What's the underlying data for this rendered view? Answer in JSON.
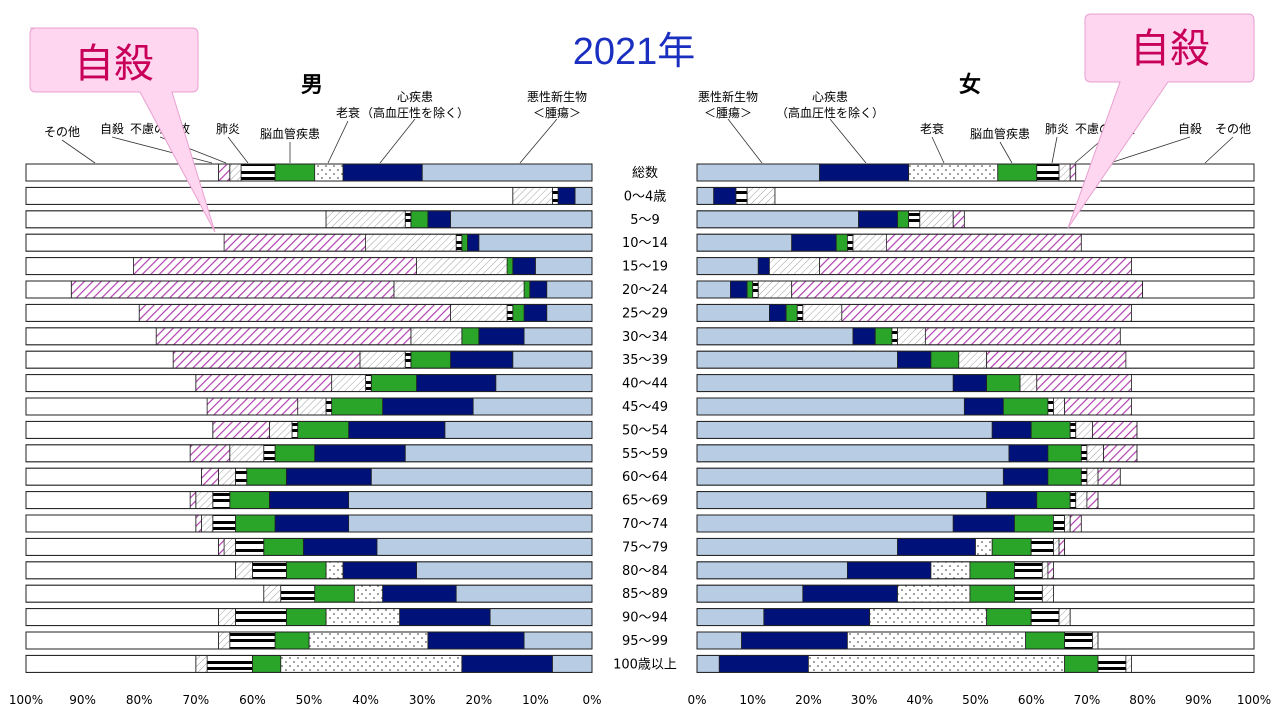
{
  "title": "2021年",
  "colors": {
    "悪性新生物＜腫瘍＞": "#b8cce4",
    "心疾患（高血圧性を除く）": "#00127a",
    "老衰": "dots",
    "脳血管疾患": "#2aa52a",
    "肺炎": "#ffffff",
    "不慮の事故": "diagonal-gray",
    "自殺": "diagonal-purple",
    "その他": "#ffffff",
    "callout_fill": "#ffd6f0",
    "title_color": "#1a2fc0",
    "callout_text_color": "#c8005a"
  },
  "callouts": {
    "male": "自殺",
    "female": "自殺"
  },
  "chart_data": [
    {
      "type": "bar",
      "orientation": "horizontal-stacked-100",
      "title": "男",
      "x_direction": "right-to-left",
      "xlim": [
        0,
        100
      ],
      "x_ticks": [
        "100%",
        "90%",
        "80%",
        "70%",
        "60%",
        "50%",
        "40%",
        "30%",
        "20%",
        "10%",
        "0%"
      ],
      "legend_labels": [
        "その他",
        "自殺",
        "不慮の事故",
        "肺炎",
        "脳血管疾患",
        "老衰",
        "心疾患\n（高血圧性を除く）",
        "悪性新生物\n＜腫瘍＞"
      ],
      "series_order": [
        "悪性新生物＜腫瘍＞",
        "心疾患（高血圧性を除く）",
        "老衰",
        "脳血管疾患",
        "肺炎",
        "不慮の事故",
        "自殺",
        "その他"
      ],
      "categories": [
        "総数",
        "0～4歳",
        "5～9",
        "10～14",
        "15～19",
        "20～24",
        "25～29",
        "30～34",
        "35～39",
        "40～44",
        "45～49",
        "50～54",
        "55～59",
        "60～64",
        "65～69",
        "70～74",
        "75～79",
        "80～84",
        "85～89",
        "90～94",
        "95～99",
        "100歳以上"
      ],
      "series": [
        {
          "name": "悪性新生物＜腫瘍＞",
          "values": [
            30,
            3,
            25,
            20,
            10,
            8,
            8,
            12,
            14,
            17,
            21,
            26,
            33,
            39,
            43,
            43,
            38,
            31,
            24,
            18,
            12,
            7
          ]
        },
        {
          "name": "心疾患（高血圧性を除く）",
          "values": [
            14,
            3,
            4,
            2,
            4,
            3,
            4,
            8,
            11,
            14,
            16,
            17,
            16,
            15,
            14,
            13,
            13,
            13,
            13,
            16,
            17,
            16
          ]
        },
        {
          "name": "老衰",
          "values": [
            5,
            0,
            0,
            0,
            0,
            0,
            0,
            0,
            0,
            0,
            0,
            0,
            0,
            0,
            0,
            0,
            0,
            3,
            5,
            13,
            21,
            32
          ]
        },
        {
          "name": "脳血管疾患",
          "values": [
            7,
            0,
            3,
            1,
            1,
            1,
            2,
            3,
            7,
            8,
            9,
            9,
            7,
            7,
            7,
            7,
            7,
            7,
            7,
            7,
            6,
            5
          ]
        },
        {
          "name": "肺炎",
          "values": [
            6,
            1,
            1,
            1,
            0,
            0,
            1,
            0,
            1,
            1,
            1,
            1,
            2,
            2,
            3,
            4,
            5,
            6,
            6,
            9,
            8,
            8
          ]
        },
        {
          "name": "不慮の事故",
          "values": [
            2,
            7,
            14,
            16,
            16,
            23,
            10,
            9,
            8,
            6,
            5,
            4,
            6,
            3,
            3,
            2,
            2,
            3,
            3,
            3,
            2,
            2
          ]
        },
        {
          "name": "自殺",
          "values": [
            2,
            0,
            0,
            25,
            50,
            57,
            55,
            45,
            33,
            24,
            16,
            10,
            7,
            3,
            1,
            1,
            1,
            0,
            0,
            0,
            0,
            0
          ]
        },
        {
          "name": "その他",
          "values": [
            34,
            86,
            53,
            35,
            19,
            8,
            20,
            23,
            26,
            30,
            32,
            33,
            29,
            31,
            29,
            30,
            34,
            37,
            42,
            34,
            34,
            30
          ]
        }
      ]
    },
    {
      "type": "bar",
      "orientation": "horizontal-stacked-100",
      "title": "女",
      "x_direction": "left-to-right",
      "xlim": [
        0,
        100
      ],
      "x_ticks": [
        "0%",
        "10%",
        "20%",
        "30%",
        "40%",
        "50%",
        "60%",
        "70%",
        "80%",
        "90%",
        "100%"
      ],
      "legend_labels": [
        "悪性新生物\n＜腫瘍＞",
        "心疾患\n（高血圧性を除く）",
        "老衰",
        "脳血管疾患",
        "肺炎",
        "不慮の事故",
        "自殺",
        "その他"
      ],
      "series_order": [
        "悪性新生物＜腫瘍＞",
        "心疾患（高血圧性を除く）",
        "老衰",
        "脳血管疾患",
        "肺炎",
        "不慮の事故",
        "自殺",
        "その他"
      ],
      "categories": [
        "総数",
        "0～4歳",
        "5～9",
        "10～14",
        "15～19",
        "20～24",
        "25～29",
        "30～34",
        "35～39",
        "40～44",
        "45～49",
        "50～54",
        "55～59",
        "60～64",
        "65～69",
        "70～74",
        "75～79",
        "80～84",
        "85～89",
        "90～94",
        "95～99",
        "100歳以上"
      ],
      "series": [
        {
          "name": "悪性新生物＜腫瘍＞",
          "values": [
            22,
            3,
            29,
            17,
            11,
            6,
            13,
            28,
            36,
            46,
            48,
            53,
            56,
            55,
            52,
            46,
            36,
            27,
            19,
            12,
            8,
            4
          ]
        },
        {
          "name": "心疾患（高血圧性を除く）",
          "values": [
            16,
            4,
            7,
            8,
            2,
            3,
            3,
            4,
            6,
            6,
            7,
            7,
            7,
            8,
            9,
            11,
            14,
            15,
            17,
            19,
            19,
            16
          ]
        },
        {
          "name": "老衰",
          "values": [
            16,
            0,
            0,
            0,
            0,
            0,
            0,
            0,
            0,
            0,
            0,
            0,
            0,
            0,
            0,
            0,
            3,
            7,
            13,
            21,
            32,
            46
          ]
        },
        {
          "name": "脳血管疾患",
          "values": [
            7,
            0,
            2,
            2,
            0,
            1,
            2,
            3,
            5,
            6,
            8,
            7,
            6,
            6,
            6,
            7,
            7,
            8,
            8,
            8,
            7,
            6
          ]
        },
        {
          "name": "肺炎",
          "values": [
            4,
            2,
            2,
            1,
            0,
            1,
            1,
            1,
            0,
            0,
            1,
            1,
            1,
            1,
            1,
            2,
            4,
            5,
            5,
            5,
            5,
            5
          ]
        },
        {
          "name": "不慮の事故",
          "values": [
            2,
            5,
            6,
            6,
            9,
            6,
            7,
            5,
            5,
            3,
            2,
            3,
            3,
            2,
            2,
            1,
            1,
            1,
            2,
            2,
            1,
            1
          ]
        },
        {
          "name": "自殺",
          "values": [
            1,
            0,
            2,
            35,
            56,
            63,
            52,
            35,
            25,
            17,
            12,
            8,
            6,
            4,
            2,
            2,
            1,
            1,
            0,
            0,
            0,
            0
          ]
        },
        {
          "name": "その他",
          "values": [
            32,
            86,
            52,
            31,
            22,
            20,
            22,
            24,
            23,
            22,
            22,
            21,
            21,
            24,
            28,
            31,
            34,
            36,
            36,
            33,
            28,
            22
          ]
        }
      ]
    }
  ]
}
